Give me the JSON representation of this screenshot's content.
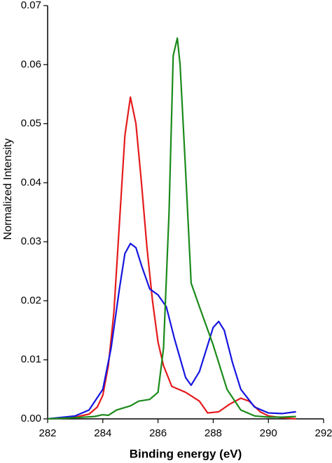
{
  "chart_data": {
    "type": "line",
    "xlabel": "Binding energy (eV)",
    "ylabel": "Normalized Intensity",
    "xlim": [
      282,
      292
    ],
    "xticks": [
      282,
      284,
      286,
      288,
      290,
      292
    ],
    "ylim": [
      0,
      0.07
    ],
    "yticks": [
      {
        "value": 0,
        "label": "0.00"
      },
      0.01,
      0.02,
      0.03,
      0.04,
      0.05,
      0.06,
      0.07
    ],
    "series": [
      {
        "color": "#e41a1c",
        "x": [
          282,
          283,
          283.5,
          283.8,
          284,
          284.2,
          284.4,
          284.6,
          284.8,
          285,
          285.2,
          285.4,
          285.6,
          285.8,
          286,
          286.2,
          286.5,
          287,
          287.5,
          287.8,
          288.2,
          288.6,
          289,
          289.3,
          289.7,
          290,
          290.5,
          291
        ],
        "values": [
          0,
          0.0003,
          0.0008,
          0.002,
          0.004,
          0.009,
          0.018,
          0.033,
          0.048,
          0.0545,
          0.05,
          0.04,
          0.029,
          0.02,
          0.013,
          0.009,
          0.0055,
          0.0045,
          0.003,
          0.001,
          0.0012,
          0.0025,
          0.0035,
          0.003,
          0.0012,
          0.0005,
          0.0002,
          0
        ]
      },
      {
        "color": "#1515e0",
        "x": [
          282,
          283,
          283.5,
          284,
          284.3,
          284.6,
          284.8,
          285,
          285.2,
          285.4,
          285.7,
          286,
          286.3,
          286.6,
          287,
          287.2,
          287.5,
          287.8,
          288,
          288.2,
          288.4,
          288.7,
          289,
          289.5,
          290,
          290.5,
          291
        ],
        "values": [
          0,
          0.0005,
          0.0015,
          0.005,
          0.012,
          0.022,
          0.028,
          0.0297,
          0.029,
          0.026,
          0.022,
          0.021,
          0.019,
          0.0135,
          0.007,
          0.0057,
          0.008,
          0.0125,
          0.0155,
          0.0165,
          0.015,
          0.0095,
          0.005,
          0.002,
          0.001,
          0.0009,
          0.0012
        ]
      },
      {
        "color": "#1a8a1a",
        "x": [
          282,
          283,
          283.7,
          284,
          284.2,
          284.5,
          285,
          285.3,
          285.7,
          286,
          286.2,
          286.4,
          286.55,
          286.7,
          286.8,
          287,
          287.2,
          287.5,
          288,
          288.5,
          289,
          289.5,
          290,
          290.5,
          291
        ],
        "values": [
          0,
          0.0002,
          0.0004,
          0.0007,
          0.0006,
          0.0015,
          0.0022,
          0.003,
          0.0033,
          0.0045,
          0.012,
          0.035,
          0.0615,
          0.0645,
          0.06,
          0.042,
          0.023,
          0.019,
          0.0125,
          0.005,
          0.0015,
          0.0005,
          0.0003,
          0.0003,
          0.0004
        ]
      }
    ]
  }
}
